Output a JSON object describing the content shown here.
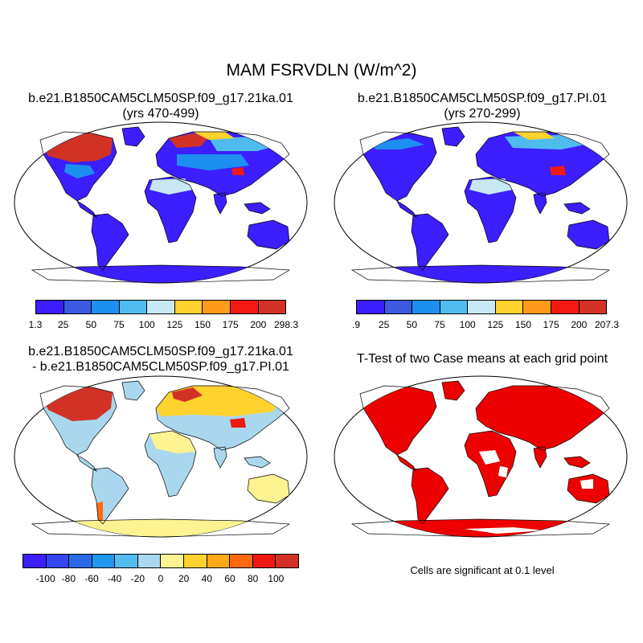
{
  "title": "MAM FSRVDLN (W/m^2)",
  "panels": [
    {
      "name": "case1",
      "title_line1": "b.e21.B1850CAM5CLM50SP.f09_g17.21ka.01",
      "title_line2": "(yrs 470-499)"
    },
    {
      "name": "case2",
      "title_line1": "b.e21.B1850CAM5CLM50SP.f09_g17.PI.01",
      "title_line2": "(yrs 270-299)"
    },
    {
      "name": "difference",
      "title_line1": "b.e21.B1850CAM5CLM50SP.f09_g17.21ka.01",
      "title_line2": "- b.e21.B1850CAM5CLM50SP.f09_g17.PI.01"
    },
    {
      "name": "ttest",
      "title_line1": "T-Test of two Case means at each grid point",
      "title_line2": ""
    }
  ],
  "colorbars": {
    "case1": {
      "colors": [
        "#3c1eff",
        "#3b5ae0",
        "#1d8ff0",
        "#4fbcf0",
        "#c8e8f6",
        "#ffd22e",
        "#ff9a1a",
        "#f21a0f",
        "#d23226"
      ],
      "labels": [
        "1.3",
        "25",
        "50",
        "75",
        "100",
        "125",
        "150",
        "175",
        "200",
        "298.3"
      ]
    },
    "case2": {
      "colors": [
        "#3c1eff",
        "#3b5ae0",
        "#1d8ff0",
        "#4fbcf0",
        "#c8e8f6",
        "#ffd22e",
        "#ff9a1a",
        "#f21a0f",
        "#d23226"
      ],
      "labels": [
        ".9",
        "25",
        "50",
        "75",
        "100",
        "125",
        "150",
        "175",
        "200",
        "207.3"
      ]
    },
    "difference": {
      "colors": [
        "#3c1eff",
        "#3346f0",
        "#2a6ae6",
        "#1d98ef",
        "#53bdf0",
        "#a9d7ee",
        "#fff391",
        "#ffd22e",
        "#ffaa14",
        "#ff6a0f",
        "#ee1a0f",
        "#d23226"
      ],
      "labels": [
        "-100",
        "-80",
        "-60",
        "-40",
        "-20",
        "0",
        "20",
        "40",
        "60",
        "80",
        "100"
      ]
    }
  },
  "note": "Cells are significant at 0.1 level"
}
